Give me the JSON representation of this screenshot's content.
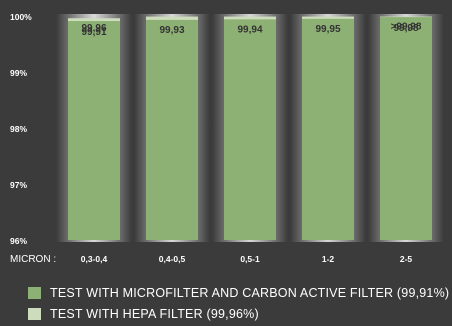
{
  "chart_data": {
    "type": "bar",
    "title": "",
    "xlabel": "MICRON :",
    "ylabel": "",
    "categories": [
      "0,3-0,4",
      "0,4-0,5",
      "0,5-1",
      "1-2",
      "2-5"
    ],
    "y_ticks": [
      "100%",
      "99%",
      "98%",
      "97%",
      "96%"
    ],
    "ylim": [
      96,
      100
    ],
    "series": [
      {
        "name": "TEST WITH MICROFILTER AND CARBON ACTIVE FILTER (99,91%)",
        "values": [
          99.91,
          99.93,
          99.94,
          99.95,
          99.98
        ],
        "labels": [
          "99,91",
          "99,93",
          "99,94",
          "99,95",
          "99,98"
        ],
        "color": "#8db074"
      },
      {
        "name": "TEST WITH HEPA FILTER (99,96%)",
        "values": [
          99.96,
          99.99,
          99.99,
          99.99,
          99.99
        ],
        "labels": [
          "99,96",
          "",
          "",
          "",
          ">99,98"
        ],
        "color": "#cddcbc"
      }
    ],
    "grid": false,
    "legend_position": "bottom-left"
  }
}
